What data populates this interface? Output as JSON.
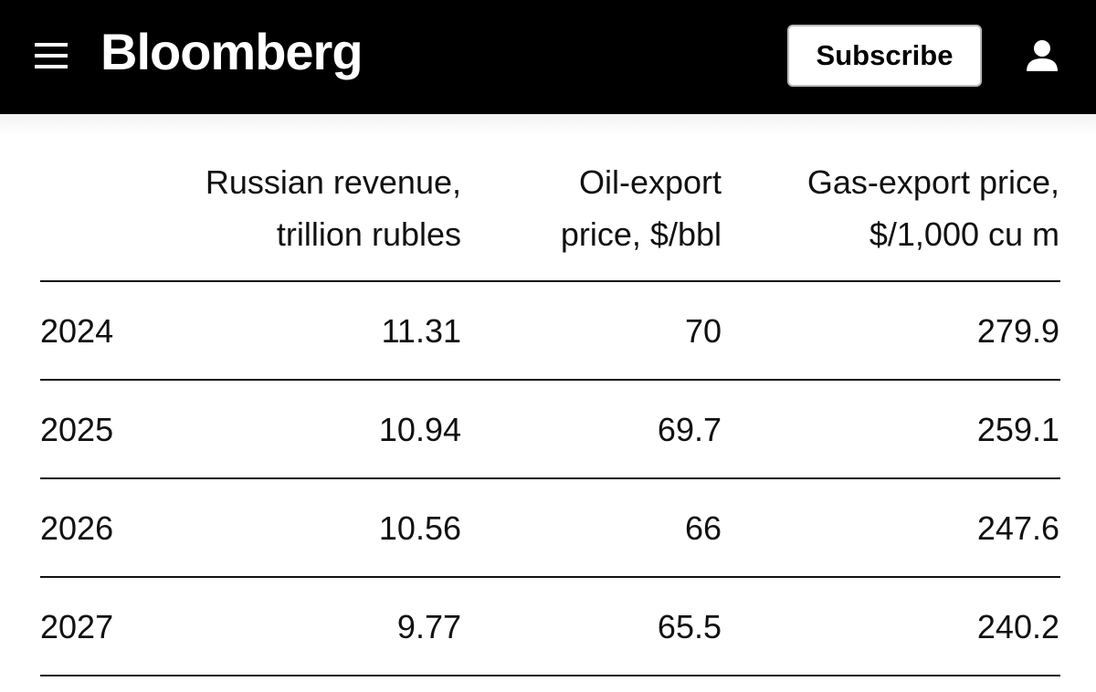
{
  "header": {
    "brand": "Bloomberg",
    "subscribe": "Subscribe"
  },
  "table": {
    "columns": [
      [
        "Russian revenue,",
        "trillion rubles"
      ],
      [
        "Oil-export",
        "price, $/bbl"
      ],
      [
        "Gas-export price,",
        "$/1,000 cu m"
      ]
    ],
    "rows": [
      [
        "2024",
        "11.31",
        "70",
        "279.9"
      ],
      [
        "2025",
        "10.94",
        "69.7",
        "259.1"
      ],
      [
        "2026",
        "10.56",
        "66",
        "247.6"
      ],
      [
        "2027",
        "9.77",
        "65.5",
        "240.2"
      ]
    ]
  }
}
